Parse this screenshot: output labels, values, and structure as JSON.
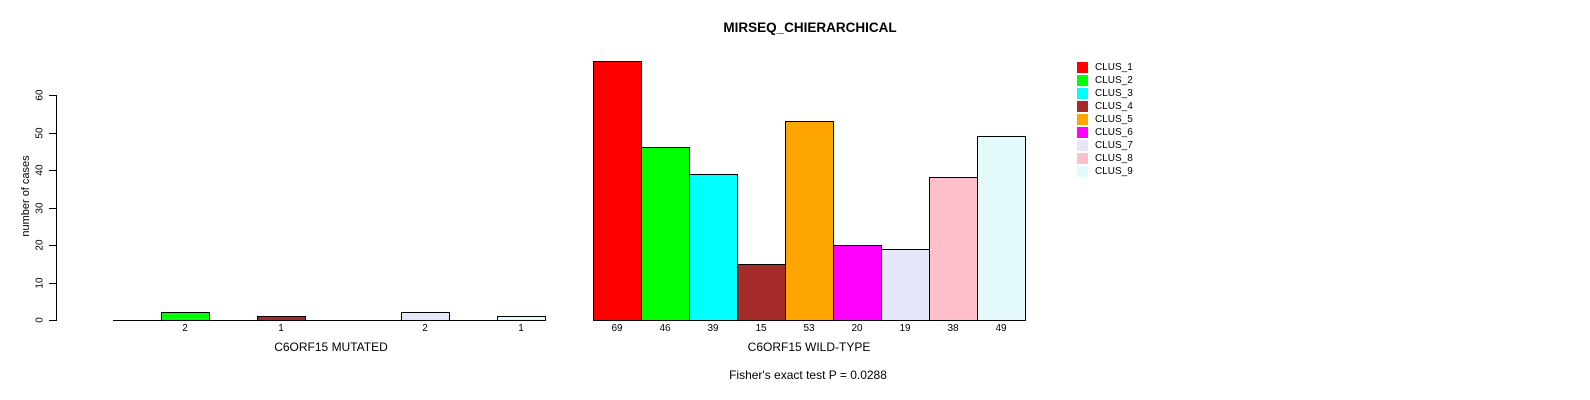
{
  "chart_data": {
    "type": "bar",
    "title": "MIRSEQ_CHIERARCHICAL",
    "ylabel": "number of cases",
    "ylim": [
      0,
      60
    ],
    "yticks": [
      0,
      10,
      20,
      30,
      40,
      50,
      60
    ],
    "grid": false,
    "legend_position": "top-right",
    "clusters": [
      "CLUS_1",
      "CLUS_2",
      "CLUS_3",
      "CLUS_4",
      "CLUS_5",
      "CLUS_6",
      "CLUS_7",
      "CLUS_8",
      "CLUS_9"
    ],
    "colors": [
      "#FF0000",
      "#00FF00",
      "#00FFFF",
      "#A52A2A",
      "#FFA500",
      "#FF00FF",
      "#E6E6FA",
      "#FFC0CB",
      "#E4FAFA"
    ],
    "groups": [
      {
        "label": "C6ORF15 MUTATED",
        "values": [
          0,
          2,
          0,
          1,
          0,
          0,
          2,
          0,
          1
        ]
      },
      {
        "label": "C6ORF15 WILD-TYPE",
        "values": [
          69,
          46,
          39,
          15,
          53,
          20,
          19,
          38,
          49
        ]
      }
    ],
    "bar_value_labels_shown_for_nonzero_only": true,
    "annotation": "Fisher's exact test P = 0.0288"
  }
}
